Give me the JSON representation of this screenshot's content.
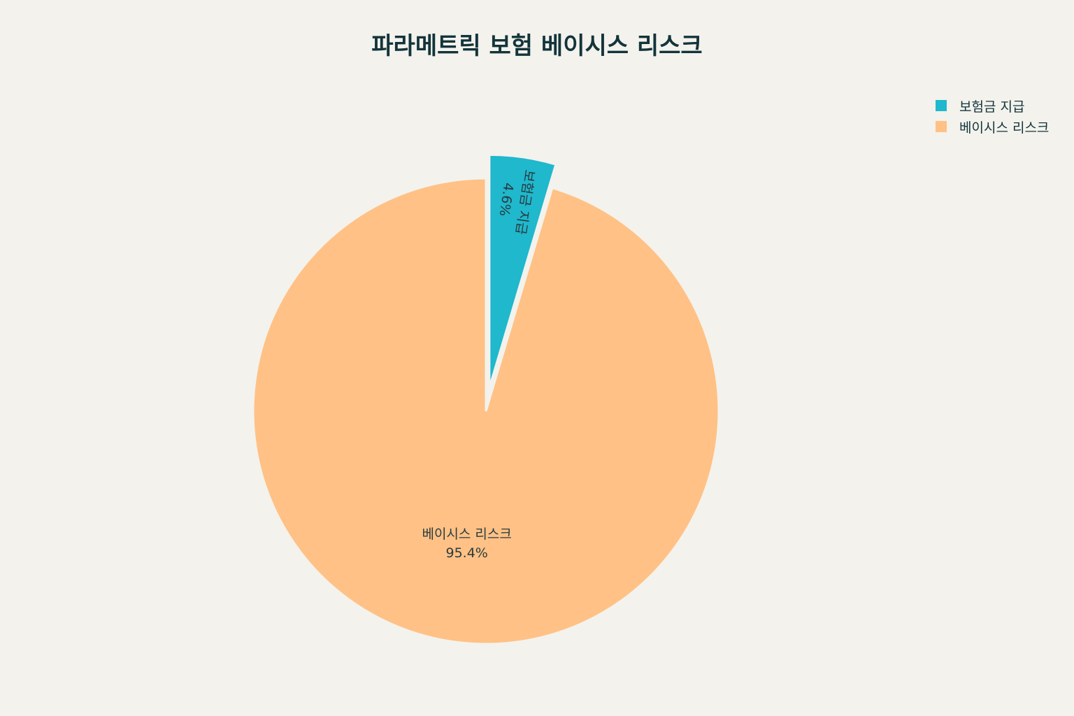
{
  "chart_data": {
    "type": "pie",
    "title": "파라메트릭 보험 베이시스 리스크",
    "slices": [
      {
        "label": "보험금 지급",
        "value": 4.6,
        "value_label": "4.6%",
        "color": "#1fb8cd",
        "exploded": true
      },
      {
        "label": "베이시스 리스크",
        "value": 95.4,
        "value_label": "95.4%",
        "color": "#ffc185",
        "exploded": false
      }
    ],
    "start_angle": "12 o'clock",
    "direction": "clockwise",
    "legend_position": "top-right",
    "legend": [
      "보험금 지급",
      "베이시스 리스크"
    ]
  }
}
